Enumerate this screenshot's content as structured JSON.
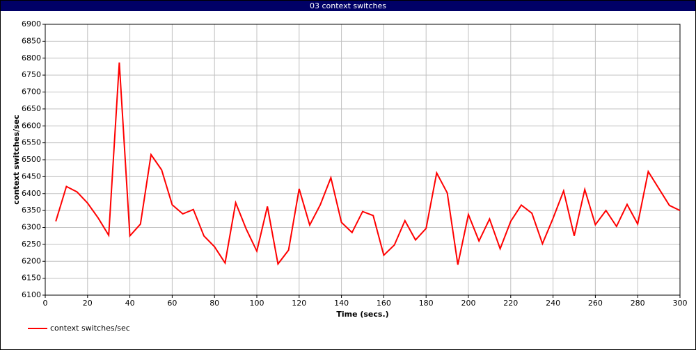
{
  "chart_data": {
    "type": "line",
    "title": "03 context switches",
    "x_label": "Time (secs.)",
    "y_label": "context switches/sec",
    "x": [
      5,
      10,
      15,
      20,
      25,
      30,
      35,
      40,
      45,
      50,
      55,
      60,
      65,
      70,
      75,
      80,
      85,
      90,
      95,
      100,
      105,
      110,
      115,
      120,
      125,
      130,
      135,
      140,
      145,
      150,
      155,
      160,
      165,
      170,
      175,
      180,
      185,
      190,
      195,
      200,
      205,
      210,
      215,
      220,
      225,
      230,
      235,
      240,
      245,
      250,
      255,
      260,
      265,
      270,
      275,
      280,
      285,
      290,
      295,
      300
    ],
    "series": [
      {
        "name": "context switches/sec",
        "color": "#ff0000",
        "values": [
          6318,
          6421,
          6405,
          6372,
          6328,
          6277,
          6787,
          6275,
          6310,
          6515,
          6470,
          6367,
          6340,
          6353,
          6275,
          6243,
          6195,
          6373,
          6295,
          6230,
          6362,
          6192,
          6233,
          6414,
          6307,
          6367,
          6447,
          6315,
          6285,
          6347,
          6335,
          6218,
          6248,
          6320,
          6263,
          6297,
          6461,
          6402,
          6190,
          6338,
          6260,
          6325,
          6237,
          6318,
          6366,
          6342,
          6252,
          6327,
          6408,
          6275,
          6412,
          6308,
          6350,
          6303,
          6368,
          6310,
          6465,
          6415,
          6365,
          6350
        ]
      }
    ],
    "xlim": [
      0,
      300
    ],
    "xticks": [
      0,
      20,
      40,
      60,
      80,
      100,
      120,
      140,
      160,
      180,
      200,
      220,
      240,
      260,
      280,
      300
    ],
    "ylim": [
      6100,
      6900
    ],
    "yticks": [
      6100,
      6150,
      6200,
      6250,
      6300,
      6350,
      6400,
      6450,
      6500,
      6550,
      6600,
      6650,
      6700,
      6750,
      6800,
      6850,
      6900
    ],
    "grid": true,
    "legend": "bottom-left"
  }
}
